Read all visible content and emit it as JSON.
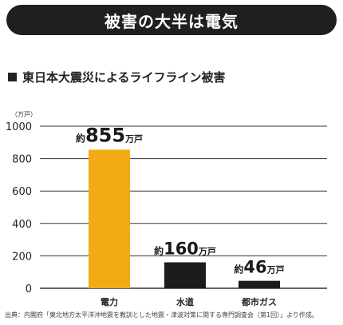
{
  "header": {
    "title": "被害の大半は電気"
  },
  "chart_data": {
    "type": "bar",
    "title": "東日本大震災によるライフライン被害",
    "unit_label": "（万戸）",
    "categories": [
      "電力",
      "水道",
      "都市ガス"
    ],
    "values": [
      855,
      160,
      46
    ],
    "data_labels": [
      {
        "prefix": "約",
        "number": "855",
        "suffix": "万戸"
      },
      {
        "prefix": "約",
        "number": "160",
        "suffix": "万戸"
      },
      {
        "prefix": "約",
        "number": "46",
        "suffix": "万戸"
      }
    ],
    "bar_colors": [
      "#f2ab14",
      "#1c1c1c",
      "#1c1c1c"
    ],
    "ylim": [
      0,
      1000
    ],
    "yticks": [
      0,
      200,
      400,
      600,
      800,
      1000
    ],
    "grid": true,
    "legend": "none"
  },
  "footer": {
    "source": "出典：内閣府「東北地方太平洋沖地震を教訓とした地震・津波対策に関する専門調査会（第1回）」より作成。"
  }
}
